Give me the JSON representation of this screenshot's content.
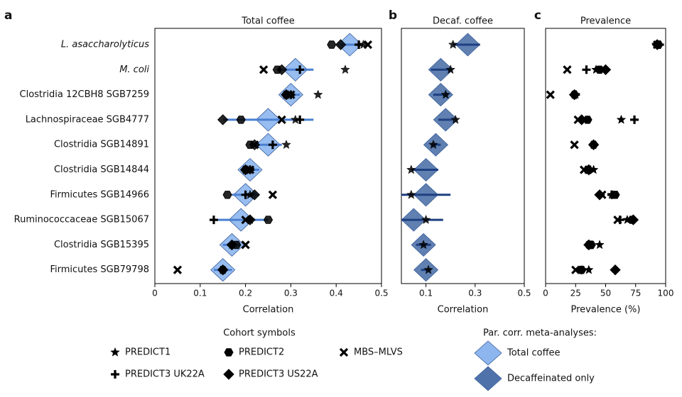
{
  "chart_data": {
    "type": "forest",
    "rows": [
      "L. asaccharolyticus",
      "M. coli",
      "Clostridia 12CBH8 SGB7259",
      "Lachnospiraceae SGB4777",
      "Clostridia SGB14891",
      "Clostridia SGB14844",
      "Firmicutes SGB14966",
      "Ruminococcaceae SGB15067",
      "Clostridia SGB15395",
      "Firmicutes SGB79798"
    ],
    "italic": [
      true,
      true,
      false,
      false,
      false,
      false,
      false,
      false,
      false,
      false
    ],
    "cohorts": [
      {
        "name": "PREDICT1",
        "symbol": "star"
      },
      {
        "name": "PREDICT2",
        "symbol": "hexagon"
      },
      {
        "name": "MBS–MLVS",
        "symbol": "x"
      },
      {
        "name": "PREDICT3 UK22A",
        "symbol": "plus"
      },
      {
        "name": "PREDICT3 US22A",
        "symbol": "diamond"
      }
    ],
    "panels": [
      {
        "letter": "a",
        "title": "Total coffee",
        "xlabel": "Correlation",
        "xlim": [
          0,
          0.5
        ],
        "xticks": [
          0,
          0.1,
          0.2,
          0.3,
          0.4,
          0.5
        ],
        "meta": {
          "color": "#8db6ee",
          "values": [
            0.43,
            0.31,
            0.3,
            0.25,
            0.25,
            0.21,
            0.2,
            0.19,
            0.17,
            0.15
          ],
          "ci_low": [
            0.41,
            0.27,
            0.28,
            0.15,
            0.22,
            0.19,
            0.17,
            0.13,
            0.15,
            0.13
          ],
          "ci_high": [
            0.45,
            0.35,
            0.32,
            0.35,
            0.28,
            0.23,
            0.23,
            0.25,
            0.19,
            0.17
          ]
        },
        "cohort_values": [
          [
            0.46,
            0.42,
            0.36,
            0.31,
            0.29,
            0.21,
            0.21,
            0.21,
            0.17,
            0.15
          ],
          [
            0.39,
            0.27,
            0.29,
            0.19,
            0.21,
            0.2,
            0.16,
            0.25,
            0.18,
            0.15
          ],
          [
            0.47,
            0.24,
            0.3,
            0.28,
            0.22,
            0.21,
            0.26,
            0.2,
            0.2,
            0.05
          ],
          [
            0.45,
            0.32,
            0.3,
            0.32,
            0.26,
            0.21,
            0.2,
            0.13,
            0.17,
            0.15
          ],
          [
            0.41,
            0.28,
            0.29,
            0.15,
            0.22,
            0.2,
            0.22,
            0.21,
            0.17,
            0.15
          ]
        ]
      },
      {
        "letter": "b",
        "title": "Decaf. coffee",
        "xlabel": "Correlation",
        "xlim": [
          0,
          0.5
        ],
        "xticks": [
          0.1,
          0.3,
          0.5
        ],
        "meta": {
          "color": "#4f72aa",
          "values": [
            0.27,
            0.16,
            0.16,
            0.18,
            0.14,
            0.1,
            0.1,
            0.05,
            0.09,
            0.1
          ],
          "ci_low": [
            0.21,
            0.12,
            0.13,
            0.15,
            0.12,
            0.04,
            0.0,
            0.0,
            0.06,
            0.08
          ],
          "ci_high": [
            0.32,
            0.2,
            0.19,
            0.21,
            0.16,
            0.15,
            0.2,
            0.17,
            0.12,
            0.12
          ]
        },
        "cohort_values": [
          [
            0.21,
            0.2,
            0.18,
            0.22,
            0.13,
            0.04,
            0.04,
            0.1,
            0.09,
            0.11
          ],
          null,
          null,
          null,
          null
        ]
      },
      {
        "letter": "c",
        "title": "Prevalence",
        "xlabel": "Prevalence (%)",
        "xlim": [
          0,
          100
        ],
        "xticks": [
          0,
          25,
          50,
          75,
          100
        ],
        "cohort_values": [
          [
            92,
            42,
            25,
            63,
            40,
            40,
            55,
            68,
            45,
            36
          ],
          [
            94,
            45,
            24,
            35,
            40,
            35,
            58,
            72,
            38,
            30
          ],
          [
            93,
            18,
            4,
            27,
            24,
            32,
            47,
            60,
            37,
            25
          ],
          [
            95,
            34,
            25,
            74,
            40,
            37,
            55,
            62,
            38,
            30
          ],
          [
            93,
            50,
            24,
            30,
            40,
            36,
            45,
            73,
            36,
            58
          ]
        ]
      }
    ],
    "legend": {
      "cohort_title": "Cohort symbols",
      "meta_title": "Par. corr. meta-analyses:",
      "meta_entries": [
        {
          "name": "Total coffee",
          "color": "#8db6ee"
        },
        {
          "name": "Decaffeinated only",
          "color": "#4f72aa"
        }
      ]
    }
  }
}
